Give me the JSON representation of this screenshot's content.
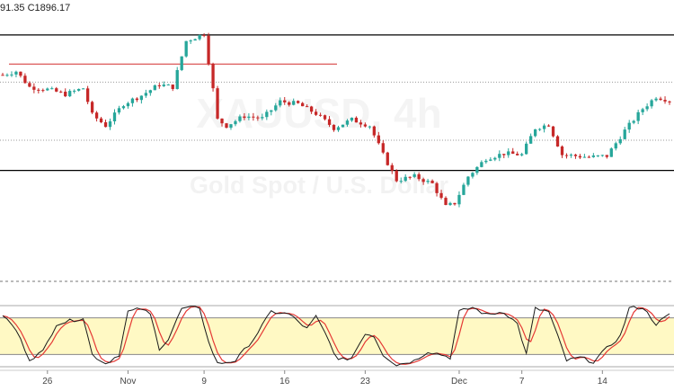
{
  "ohlc_header": "91.35  C1896.17",
  "watermark": {
    "symbol": "XAUUSD",
    "interval": "4h",
    "description": "Gold Spot / U.S. Dollar"
  },
  "colors": {
    "up": "#26a69a",
    "down": "#c62828",
    "band_fill": "#fff9c4",
    "k_line": "#1a1a1a",
    "d_line": "#e53935",
    "resistance_line": "#d32f2f"
  },
  "chart_data": [
    {
      "type": "candlestick",
      "price_range": [
        1765,
        1985
      ],
      "x_count": 150,
      "x_tick_labels": [
        {
          "label": "26",
          "index": 10
        },
        {
          "label": "Nov",
          "index": 28
        },
        {
          "label": "9",
          "index": 45
        },
        {
          "label": "16",
          "index": 63
        },
        {
          "label": "23",
          "index": 81
        },
        {
          "label": "Dec",
          "index": 102
        },
        {
          "label": "7",
          "index": 116
        },
        {
          "label": "14",
          "index": 134
        }
      ],
      "horizontal_levels": [
        {
          "price": 1965,
          "style": "solid"
        },
        {
          "price": 1941,
          "style": "solid-short"
        },
        {
          "price": 1926,
          "style": "dotted"
        },
        {
          "price": 1878,
          "style": "dotted"
        },
        {
          "price": 1853,
          "style": "solid"
        }
      ],
      "anchor_closes": [
        [
          0,
          1932
        ],
        [
          3,
          1935
        ],
        [
          6,
          1922
        ],
        [
          10,
          1920
        ],
        [
          14,
          1916
        ],
        [
          18,
          1921
        ],
        [
          20,
          1899
        ],
        [
          23,
          1890
        ],
        [
          27,
          1908
        ],
        [
          31,
          1915
        ],
        [
          35,
          1924
        ],
        [
          38,
          1922
        ],
        [
          41,
          1960
        ],
        [
          45,
          1966
        ],
        [
          47,
          1920
        ],
        [
          48,
          1895
        ],
        [
          50,
          1890
        ],
        [
          54,
          1898
        ],
        [
          58,
          1896
        ],
        [
          62,
          1910
        ],
        [
          66,
          1908
        ],
        [
          70,
          1900
        ],
        [
          74,
          1888
        ],
        [
          78,
          1895
        ],
        [
          82,
          1890
        ],
        [
          85,
          1866
        ],
        [
          88,
          1845
        ],
        [
          92,
          1848
        ],
        [
          96,
          1842
        ],
        [
          99,
          1823
        ],
        [
          101,
          1826
        ],
        [
          104,
          1848
        ],
        [
          108,
          1863
        ],
        [
          112,
          1867
        ],
        [
          116,
          1866
        ],
        [
          119,
          1888
        ],
        [
          122,
          1891
        ],
        [
          125,
          1866
        ],
        [
          128,
          1865
        ],
        [
          131,
          1864
        ],
        [
          135,
          1865
        ],
        [
          139,
          1886
        ],
        [
          143,
          1904
        ],
        [
          146,
          1914
        ],
        [
          149,
          1911
        ]
      ]
    },
    {
      "type": "line",
      "indicator": "stochastic",
      "ylim": [
        0,
        100
      ],
      "band": [
        20,
        80
      ],
      "k_anchors": [
        [
          0,
          85
        ],
        [
          3,
          60
        ],
        [
          6,
          12
        ],
        [
          9,
          25
        ],
        [
          12,
          70
        ],
        [
          15,
          75
        ],
        [
          18,
          80
        ],
        [
          20,
          20
        ],
        [
          23,
          5
        ],
        [
          26,
          20
        ],
        [
          28,
          90
        ],
        [
          31,
          95
        ],
        [
          33,
          85
        ],
        [
          35,
          30
        ],
        [
          37,
          45
        ],
        [
          40,
          95
        ],
        [
          44,
          97
        ],
        [
          46,
          40
        ],
        [
          48,
          5
        ],
        [
          52,
          10
        ],
        [
          56,
          45
        ],
        [
          60,
          90
        ],
        [
          64,
          86
        ],
        [
          68,
          62
        ],
        [
          70,
          82
        ],
        [
          72,
          55
        ],
        [
          75,
          10
        ],
        [
          78,
          15
        ],
        [
          81,
          55
        ],
        [
          83,
          50
        ],
        [
          85,
          20
        ],
        [
          88,
          3
        ],
        [
          92,
          10
        ],
        [
          95,
          25
        ],
        [
          98,
          20
        ],
        [
          100,
          15
        ],
        [
          102,
          90
        ],
        [
          105,
          97
        ],
        [
          108,
          85
        ],
        [
          112,
          90
        ],
        [
          115,
          70
        ],
        [
          117,
          20
        ],
        [
          119,
          95
        ],
        [
          122,
          90
        ],
        [
          124,
          50
        ],
        [
          126,
          10
        ],
        [
          129,
          15
        ],
        [
          132,
          8
        ],
        [
          135,
          30
        ],
        [
          138,
          50
        ],
        [
          140,
          96
        ],
        [
          143,
          97
        ],
        [
          146,
          70
        ],
        [
          149,
          85
        ]
      ],
      "d_lag": 1.5
    }
  ]
}
